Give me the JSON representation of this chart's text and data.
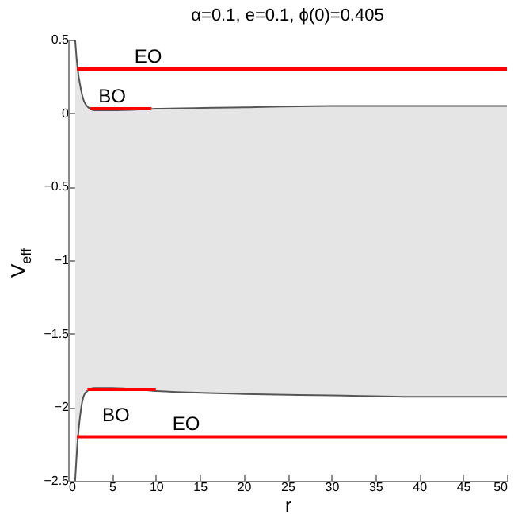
{
  "chart_data": {
    "type": "line",
    "title": "α=0.1, e=0.1, ϕ(0)=0.405",
    "xlabel": "r",
    "ylabel": "V$_{eff}$",
    "x": [
      0.8,
      1,
      1.5,
      2,
      3,
      5,
      10,
      20,
      30,
      40,
      50
    ],
    "series": [
      {
        "color": "#555555",
        "values": [
          0.5,
          0.35,
          0.15,
          0.06,
          0.02,
          0.02,
          0.03,
          0.04,
          0.05,
          0.05,
          0.05
        ],
        "lower": [
          -2.5,
          -2.3,
          -2.0,
          -1.9,
          -1.87,
          -1.87,
          -1.89,
          -1.91,
          -1.92,
          -1.93,
          -1.93
        ],
        "upper": [
          0.5,
          0.35,
          0.15,
          0.06,
          0.02,
          0.02,
          0.03,
          0.04,
          0.05,
          0.05,
          0.05
        ]
      },
      {
        "color": "#555555",
        "values": [
          -2.5,
          -2.3,
          -2.0,
          -1.9,
          -1.87,
          -1.87,
          -1.89,
          -1.91,
          -1.92,
          -1.93,
          -1.93
        ]
      },
      {
        "name": "EO",
        "color": "#ff0000",
        "x": [
          1,
          50
        ],
        "values": [
          0.3,
          0.3
        ]
      },
      {
        "name": "BO",
        "color": "#ff0000",
        "x": [
          2.5,
          9.5
        ],
        "values": [
          0.03,
          0.03
        ]
      },
      {
        "name": "BO",
        "color": "#ff0000",
        "x": [
          2.2,
          10
        ],
        "values": [
          -1.88,
          -1.88
        ]
      },
      {
        "name": "EO",
        "color": "#ff0000",
        "x": [
          1,
          50
        ],
        "values": [
          -2.2,
          -2.2
        ]
      }
    ],
    "xlim": [
      0,
      50
    ],
    "xticks": [
      0,
      5,
      10,
      15,
      20,
      25,
      30,
      35,
      40,
      45,
      50
    ],
    "ylim": [
      -2.5,
      0.5
    ],
    "yticks": [
      -2.5,
      -2,
      -1.5,
      -1,
      -0.5,
      0,
      0.5
    ],
    "grid": false
  }
}
